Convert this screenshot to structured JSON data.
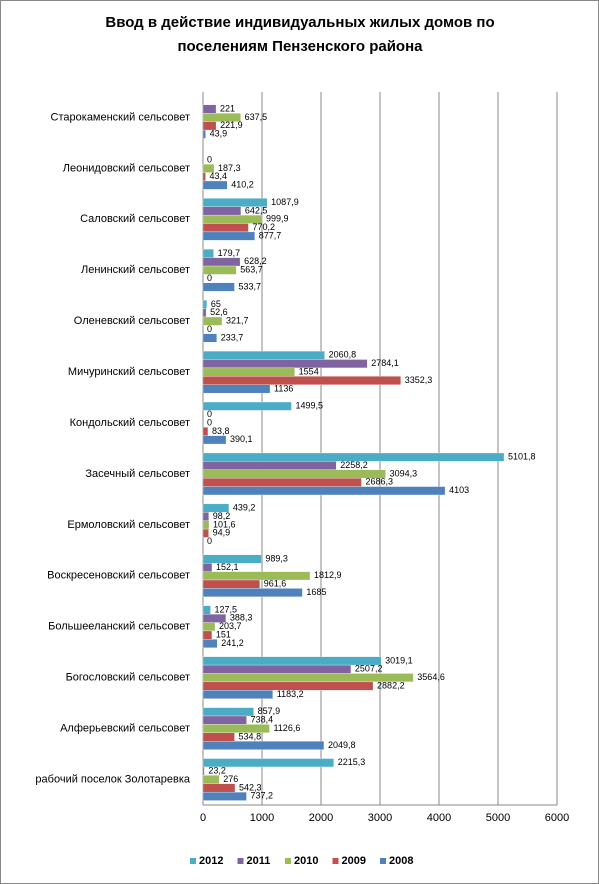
{
  "chart_data": {
    "type": "bar",
    "orientation": "horizontal",
    "title": [
      "Ввод в действие индивидуальных жилых домов по",
      "поселениям Пензенского района"
    ],
    "categories": [
      "Старокаменский сельсовет",
      "Леонидовский сельсовет",
      "Саловский сельсовет",
      "Ленинский сельсовет",
      "Оленевский сельсовет",
      "Мичуринский сельсовет",
      "Кондольский сельсовет",
      "Засечный сельсовет",
      "Ермоловский сельсовет",
      "Воскресеновский сельсовет",
      "Большееланский сельсовет",
      "Богословский сельсовет",
      "Алферьевский сельсовет",
      "рабочий поселок Золотаревка"
    ],
    "series": [
      {
        "name": "2012",
        "color": "#4bacc6",
        "values": [
          null,
          null,
          1087.9,
          179.7,
          65,
          2060.8,
          1499.5,
          5101.8,
          439.2,
          989.3,
          127.5,
          3019.1,
          857.9,
          2215.3
        ],
        "value_labels": [
          null,
          null,
          "1087,9",
          "179,7",
          "65",
          "2060,8",
          "1499,5",
          "5101,8",
          "439,2",
          "989,3",
          "127,5",
          "3019,1",
          "857,9",
          "2215,3"
        ]
      },
      {
        "name": "2011",
        "color": "#8064a2",
        "values": [
          221,
          0,
          642.5,
          628.2,
          52.6,
          2784.1,
          0,
          2258.2,
          98.2,
          152.1,
          388.3,
          2507.2,
          738.4,
          23.2
        ],
        "value_labels": [
          "221",
          "0",
          "642,5",
          "628,2",
          "52,6",
          "2784,1",
          "0",
          "2258,2",
          "98,2",
          "152,1",
          "388,3",
          "2507,2",
          "738,4",
          "23,2"
        ]
      },
      {
        "name": "2010",
        "color": "#9bbb59",
        "values": [
          637.5,
          187.3,
          999.9,
          563.7,
          321.7,
          1554,
          0,
          3094.3,
          101.6,
          1812.9,
          203.7,
          3564.6,
          1126.6,
          276
        ],
        "value_labels": [
          "637,5",
          "187,3",
          "999,9",
          "563,7",
          "321,7",
          "1554",
          "0",
          "3094,3",
          "101,6",
          "1812,9",
          "203,7",
          "3564,6",
          "1126,6",
          "276"
        ]
      },
      {
        "name": "2009",
        "color": "#c0504d",
        "values": [
          221.9,
          43.4,
          770.2,
          0,
          0,
          3352.3,
          83.8,
          2686.3,
          94.9,
          961.6,
          151,
          2882.2,
          534.8,
          542.3
        ],
        "value_labels": [
          "221,9",
          "43,4",
          "770,2",
          "0",
          "0",
          "3352,3",
          "83,8",
          "2686,3",
          "94,9",
          "961,6",
          "151",
          "2882,2",
          "534,8",
          "542,3"
        ]
      },
      {
        "name": "2008",
        "color": "#4f81bd",
        "values": [
          43.9,
          410.2,
          877.7,
          533.7,
          233.7,
          1136,
          390.1,
          4103,
          0,
          1685,
          241.2,
          1183.2,
          2049.8,
          737.2
        ],
        "value_labels": [
          "43,9",
          "410,2",
          "877,7",
          "533,7",
          "233,7",
          "1136",
          "390,1",
          "4103",
          "0",
          "1685",
          "241,2",
          "1183,2",
          "2049,8",
          "737,2"
        ]
      }
    ],
    "xlim": [
      0,
      6000
    ],
    "xticks": [
      0,
      1000,
      2000,
      3000,
      4000,
      5000,
      6000
    ],
    "grid": true,
    "legend": "bottom"
  }
}
